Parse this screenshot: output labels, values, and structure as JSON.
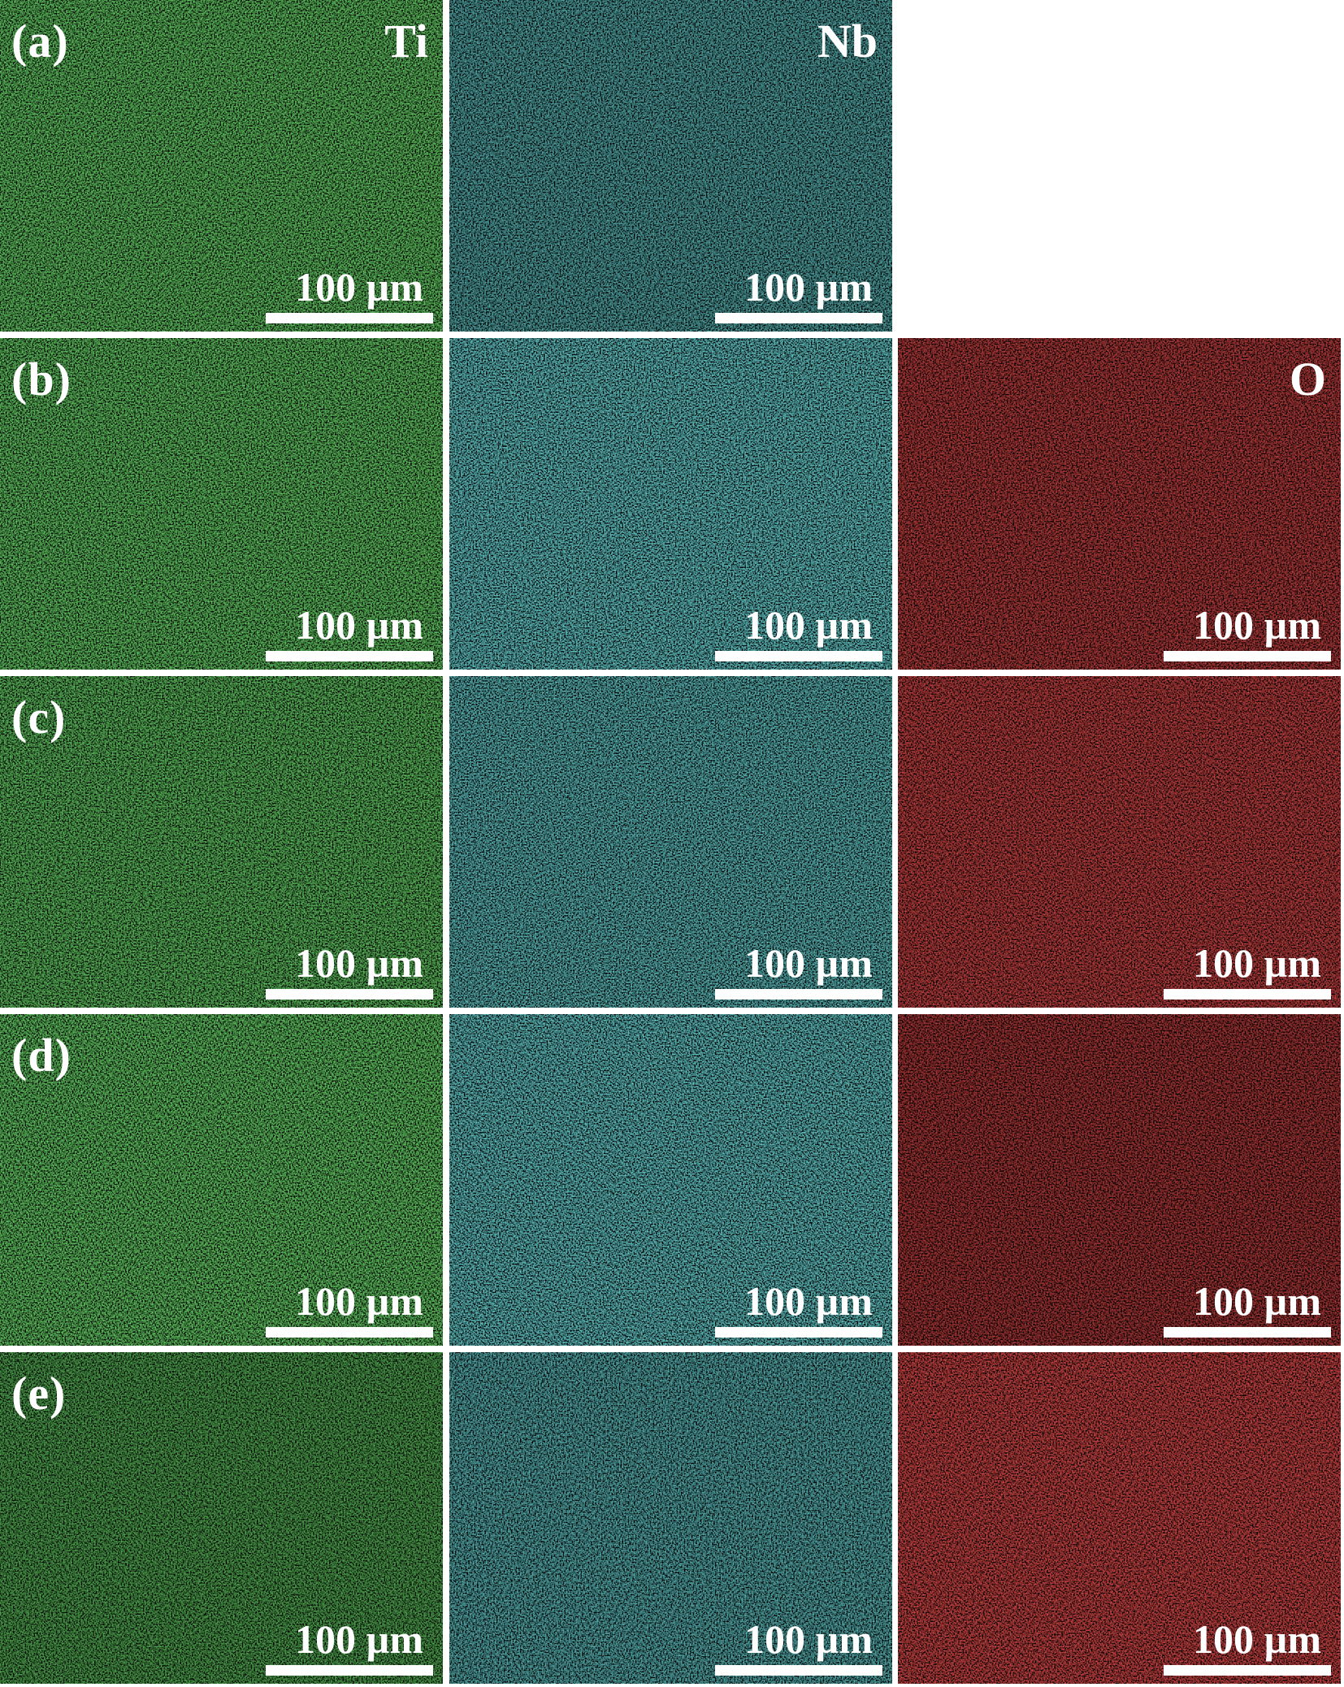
{
  "figure": {
    "colors": {
      "Ti": "#2fd02f",
      "Nb": "#2ec4c4",
      "O": "#e01818"
    },
    "rows": [
      {
        "label": "(a)",
        "panels": [
          {
            "element": "Ti",
            "element_label": "Ti",
            "scale_text": "100 µm",
            "brightness": 0.85
          },
          {
            "element": "Nb",
            "element_label": "Nb",
            "scale_text": "100 µm",
            "brightness": 0.62
          }
        ]
      },
      {
        "label": "(b)",
        "panels": [
          {
            "element": "Ti",
            "element_label": "",
            "scale_text": "100 µm",
            "brightness": 0.85
          },
          {
            "element": "Nb",
            "element_label": "",
            "scale_text": "100 µm",
            "brightness": 0.9
          },
          {
            "element": "O",
            "element_label": "O",
            "scale_text": "100 µm",
            "brightness": 0.65
          }
        ]
      },
      {
        "label": "(c)",
        "panels": [
          {
            "element": "Ti",
            "element_label": "",
            "scale_text": "100 µm",
            "brightness": 0.78
          },
          {
            "element": "Nb",
            "element_label": "",
            "scale_text": "100 µm",
            "brightness": 0.78
          },
          {
            "element": "O",
            "element_label": "",
            "scale_text": "100 µm",
            "brightness": 0.75
          }
        ]
      },
      {
        "label": "(d)",
        "panels": [
          {
            "element": "Ti",
            "element_label": "",
            "scale_text": "100 µm",
            "brightness": 0.88
          },
          {
            "element": "Nb",
            "element_label": "",
            "scale_text": "100 µm",
            "brightness": 0.88
          },
          {
            "element": "O",
            "element_label": "",
            "scale_text": "100 µm",
            "brightness": 0.55
          }
        ]
      },
      {
        "label": "(e)",
        "panels": [
          {
            "element": "Ti",
            "element_label": "",
            "scale_text": "100 µm",
            "brightness": 0.58
          },
          {
            "element": "Nb",
            "element_label": "",
            "scale_text": "100 µm",
            "brightness": 0.68
          },
          {
            "element": "O",
            "element_label": "",
            "scale_text": "100 µm",
            "brightness": 0.85
          }
        ]
      }
    ]
  }
}
